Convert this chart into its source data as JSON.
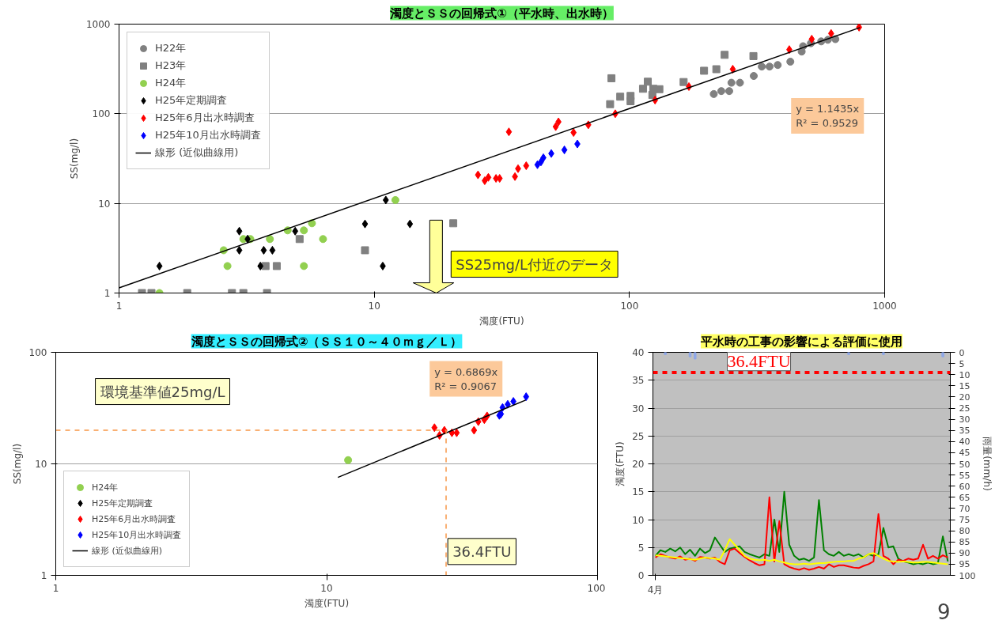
{
  "chart_data": [
    {
      "type": "scatter",
      "title": "濁度とＳＳの回帰式①（平水時、出水時）",
      "xlabel": "濁度(FTU)",
      "ylabel": "SS(mg/l)",
      "log": "xy",
      "xlim": [
        1,
        1000
      ],
      "ylim": [
        1,
        1000
      ],
      "xticks": [
        1,
        10,
        100,
        1000
      ],
      "yticks": [
        1,
        10,
        100,
        1000
      ],
      "grid": "y",
      "legend": "top left",
      "annotations": [
        "y = 1.1435x\nR² = 0.9529",
        "SS25mg/L付近のデータ"
      ],
      "series": [
        {
          "name": "H22年",
          "color": "#808080",
          "marker": "circle",
          "x": [
            214,
            229,
            246,
            251,
            271,
            307,
            330,
            354,
            381,
            427,
            473,
            479,
            514,
            564,
            599,
            641
          ],
          "values": [
            166,
            179,
            179,
            222,
            222,
            264,
            336,
            336,
            350,
            381,
            494,
            567,
            612,
            642,
            668,
            680
          ]
        },
        {
          "name": "H23年",
          "color": "#808080",
          "marker": "square",
          "x": [
            1.23,
            1.34,
            1.85,
            2.77,
            3.07,
            3.8,
            5.1,
            3.75,
            4.15,
            9.2,
            20.4,
            85,
            84,
            92,
            101,
            101,
            113,
            118,
            124,
            131,
            123,
            163,
            196,
            219,
            236,
            306
          ],
          "values": [
            1,
            1,
            1,
            1,
            1,
            1,
            4,
            2,
            2,
            3,
            6,
            249,
            128,
            155,
            158,
            138,
            190,
            228,
            190,
            188,
            162,
            226,
            302,
            314,
            454,
            440
          ]
        },
        {
          "name": "H24年",
          "color": "#92d050",
          "marker": "circle",
          "x": [
            1.44,
            2.66,
            2.57,
            3.07,
            3.27,
            3.9,
            4.58,
            5.3,
            5.7,
            5.3,
            6.3,
            12.1
          ],
          "values": [
            1,
            2,
            3,
            4,
            4,
            4,
            5,
            5,
            6,
            2,
            4,
            10.9
          ]
        },
        {
          "name": "H25年定期調査",
          "color": "#000000",
          "marker": "diamond",
          "x": [
            1.44,
            2.96,
            2.96,
            3.19,
            3.69,
            3.99,
            3.58,
            4.9,
            9.2,
            11.1,
            13.8,
            10.8
          ],
          "values": [
            2,
            4.9,
            3,
            4,
            3,
            3,
            2,
            4.9,
            5.9,
            10.9,
            5.9,
            2
          ]
        },
        {
          "name": "H25年6月出水時調査",
          "color": "#ff0000",
          "marker": "diamond",
          "x": [
            25.5,
            27.1,
            28,
            30,
            31,
            35.6,
            36.6,
            39.4,
            33.7,
            51.4,
            52.7,
            60.4,
            69,
            88,
            126,
            171,
            254,
            423,
            518,
            617,
            794
          ],
          "values": [
            20.8,
            17.9,
            19.5,
            19,
            19,
            19.9,
            24.4,
            26.3,
            62.8,
            71.8,
            81.2,
            61.7,
            75.2,
            100,
            142,
            201,
            314,
            520,
            680,
            786,
            924
          ]
        },
        {
          "name": "H25年10月出水時調査",
          "color": "#0000ff",
          "marker": "diamond",
          "x": [
            43.6,
            44.4,
            45,
            46,
            49.4,
            55.6,
            62.5
          ],
          "values": [
            27,
            null,
            29,
            32.3,
            36,
            39.5,
            46
          ]
        },
        {
          "name": "線形 (近似曲線用)",
          "type": "line",
          "color": "#000000",
          "line_style": "solid",
          "x": [
            1,
            800
          ],
          "values": [
            1.14,
            915
          ]
        }
      ]
    },
    {
      "type": "scatter",
      "title": "濁度とＳＳの回帰式②（ＳＳ１０～４０ｍｇ／Ｌ）",
      "xlabel": "濁度(FTU)",
      "ylabel": "SS(mg/l)",
      "log": "xy",
      "xlim": [
        1,
        100
      ],
      "ylim": [
        1,
        100
      ],
      "xticks": [
        1,
        10,
        100
      ],
      "yticks": [
        1,
        10,
        100
      ],
      "grid": "y",
      "legend": "bottom left",
      "annotations": [
        "y = 0.6869x\nR² = 0.9067",
        "環境基準値25mg/L",
        "36.4FTU"
      ],
      "series": [
        {
          "name": "H24年",
          "color": "#92d050",
          "marker": "circle",
          "x": [
            12
          ],
          "values": [
            10.8
          ]
        },
        {
          "name": "H25年定期調査",
          "color": "#000000",
          "marker": "diamond"
        },
        {
          "name": "H25年6月出水時調査",
          "color": "#ff0000",
          "marker": "diamond",
          "x": [
            25,
            26.1,
            27.2,
            29,
            30.2,
            35,
            36.3,
            38.2,
            39.1
          ],
          "values": [
            21.1,
            18,
            20,
            19,
            19,
            20,
            23.9,
            24.9,
            26.9
          ]
        },
        {
          "name": "H25年10月出水時調査",
          "color": "#0000ff",
          "marker": "diamond",
          "x": [
            43.4,
            44,
            44.6,
            46.6,
            48.9,
            54.5
          ],
          "values": [
            27.2,
            28,
            32,
            34.2,
            36.3,
            40
          ]
        },
        {
          "name": "線形 (近似曲線用)",
          "type": "line",
          "color": "#000000",
          "line_style": "solid",
          "x": [
            11,
            54.3
          ],
          "values": [
            7.56,
            37.3
          ]
        },
        {
          "type": "line",
          "color": "#f79646",
          "line_style": "dashed",
          "x": [
            1,
            27.6,
            27.6
          ],
          "values": [
            20,
            20,
            1
          ]
        }
      ]
    },
    {
      "type": "line",
      "title": "平水時の工事の影響による評価に使用",
      "ylabel": "濁度(FTU)",
      "y2label": "雨量(mm/h)",
      "ylim": [
        0,
        40
      ],
      "yticks": [
        0,
        5,
        10,
        15,
        20,
        25,
        30,
        35,
        40
      ],
      "y2lim": [
        100,
        0
      ],
      "y2ticks": [
        0,
        5,
        10,
        15,
        20,
        25,
        30,
        35,
        40,
        45,
        50,
        55,
        60,
        65,
        70,
        75,
        80,
        85,
        90,
        95,
        100
      ],
      "grid": "y",
      "legend": false,
      "line_style": "solid",
      "annotations": [
        "9"
      ],
      "ref_lines": [
        {
          "axis": "y",
          "value": 36.4,
          "label": "36.4FTU",
          "color": "#ff0000",
          "line_style": "dashed"
        }
      ],
      "categories": [
        "4月",
        null,
        null,
        null,
        null,
        null,
        null,
        null,
        null,
        null,
        null,
        null,
        null,
        null,
        null,
        null,
        null,
        null,
        null,
        null,
        null,
        null,
        null,
        null,
        null,
        null,
        null,
        null,
        null,
        null,
        null,
        null,
        null,
        null,
        null,
        null,
        null,
        null,
        null,
        null,
        null,
        null,
        null,
        null,
        null,
        null,
        null,
        null,
        null,
        null,
        null,
        null,
        null,
        null,
        null,
        null,
        null,
        null,
        null,
        null
      ],
      "series": [
        {
          "color": "#008000",
          "values": [
            3.5,
            4.5,
            4.2,
            4.8,
            4.3,
            5.0,
            3.8,
            4.6,
            3.5,
            4.8,
            4.0,
            4.5,
            6.8,
            5.5,
            4.2,
            4.8,
            5.0,
            5.2,
            4.2,
            3.8,
            3.5,
            3.2,
            3.8,
            3.5,
            10.0,
            4.2,
            15.0,
            5.5,
            3.5,
            2.8,
            3.0,
            2.6,
            3.2,
            13.5,
            4.5,
            3.8,
            3.5,
            4.2,
            3.5,
            3.8,
            3.5,
            3.8,
            3.2,
            3.8,
            3.5,
            3.8,
            8.5,
            5.0,
            5.2,
            3.0,
            2.5,
            2.3,
            2.0,
            2.2,
            2.0,
            2.3,
            2.0,
            2.2,
            7.0,
            2.5
          ]
        },
        {
          "color": "#ff0000",
          "values": [
            3.2,
            3.8,
            3.5,
            3.2,
            3.0,
            3.4,
            2.8,
            3.0,
            2.6,
            3.3,
            3.2,
            3.0,
            3.2,
            2.4,
            2.0,
            4.5,
            4.8,
            4.0,
            3.3,
            2.7,
            2.2,
            1.8,
            2.0,
            14.0,
            2.5,
            9.7,
            2.0,
            1.5,
            1.2,
            1.0,
            1.3,
            1.0,
            1.2,
            1.5,
            1.2,
            2.0,
            1.5,
            1.8,
            1.8,
            1.6,
            1.4,
            1.3,
            1.7,
            2.0,
            2.5,
            11.0,
            3.5,
            3.0,
            2.0,
            2.8,
            2.6,
            3.0,
            2.8,
            3.0,
            5.5,
            3.0,
            3.5,
            3.0,
            3.6,
            3.2
          ]
        },
        {
          "color": "#ffff00",
          "values": [
            3.6,
            3.5,
            3.4,
            3.3,
            3.2,
            3.1,
            3.0,
            2.9,
            2.8,
            3.0,
            3.2,
            3.1,
            3.0,
            2.8,
            4.5,
            6.5,
            5.5,
            4.5,
            3.5,
            3.0,
            2.8,
            2.7,
            2.8,
            2.6,
            2.8,
            2.5,
            2.3,
            2.1,
            2.0,
            2.0,
            2.1,
            2.0,
            2.1,
            2.2,
            2.2,
            2.3,
            2.4,
            2.5,
            2.5,
            2.6,
            2.6,
            3.0,
            3.2,
            3.8,
            4.0,
            3.5,
            3.0,
            2.6,
            2.5,
            2.4,
            2.5,
            2.4,
            2.3,
            2.3,
            2.4,
            2.4,
            2.3,
            2.2,
            2.1,
            2.0
          ]
        },
        {
          "type": "bar",
          "axis": "y2",
          "color": "#8fa8e8",
          "values": [
            null,
            null,
            1,
            null,
            null,
            null,
            null,
            2,
            3,
            null,
            null,
            null,
            null,
            null,
            null,
            null,
            null,
            null,
            null,
            null,
            null,
            null,
            null,
            null,
            null,
            null,
            null,
            null,
            null,
            null,
            null,
            null,
            null,
            null,
            null,
            null,
            null,
            null,
            null,
            1,
            null,
            null,
            null,
            null,
            null,
            null,
            1,
            null,
            null,
            null,
            null,
            null,
            null,
            null,
            null,
            null,
            null,
            null,
            2,
            null
          ]
        }
      ]
    }
  ]
}
